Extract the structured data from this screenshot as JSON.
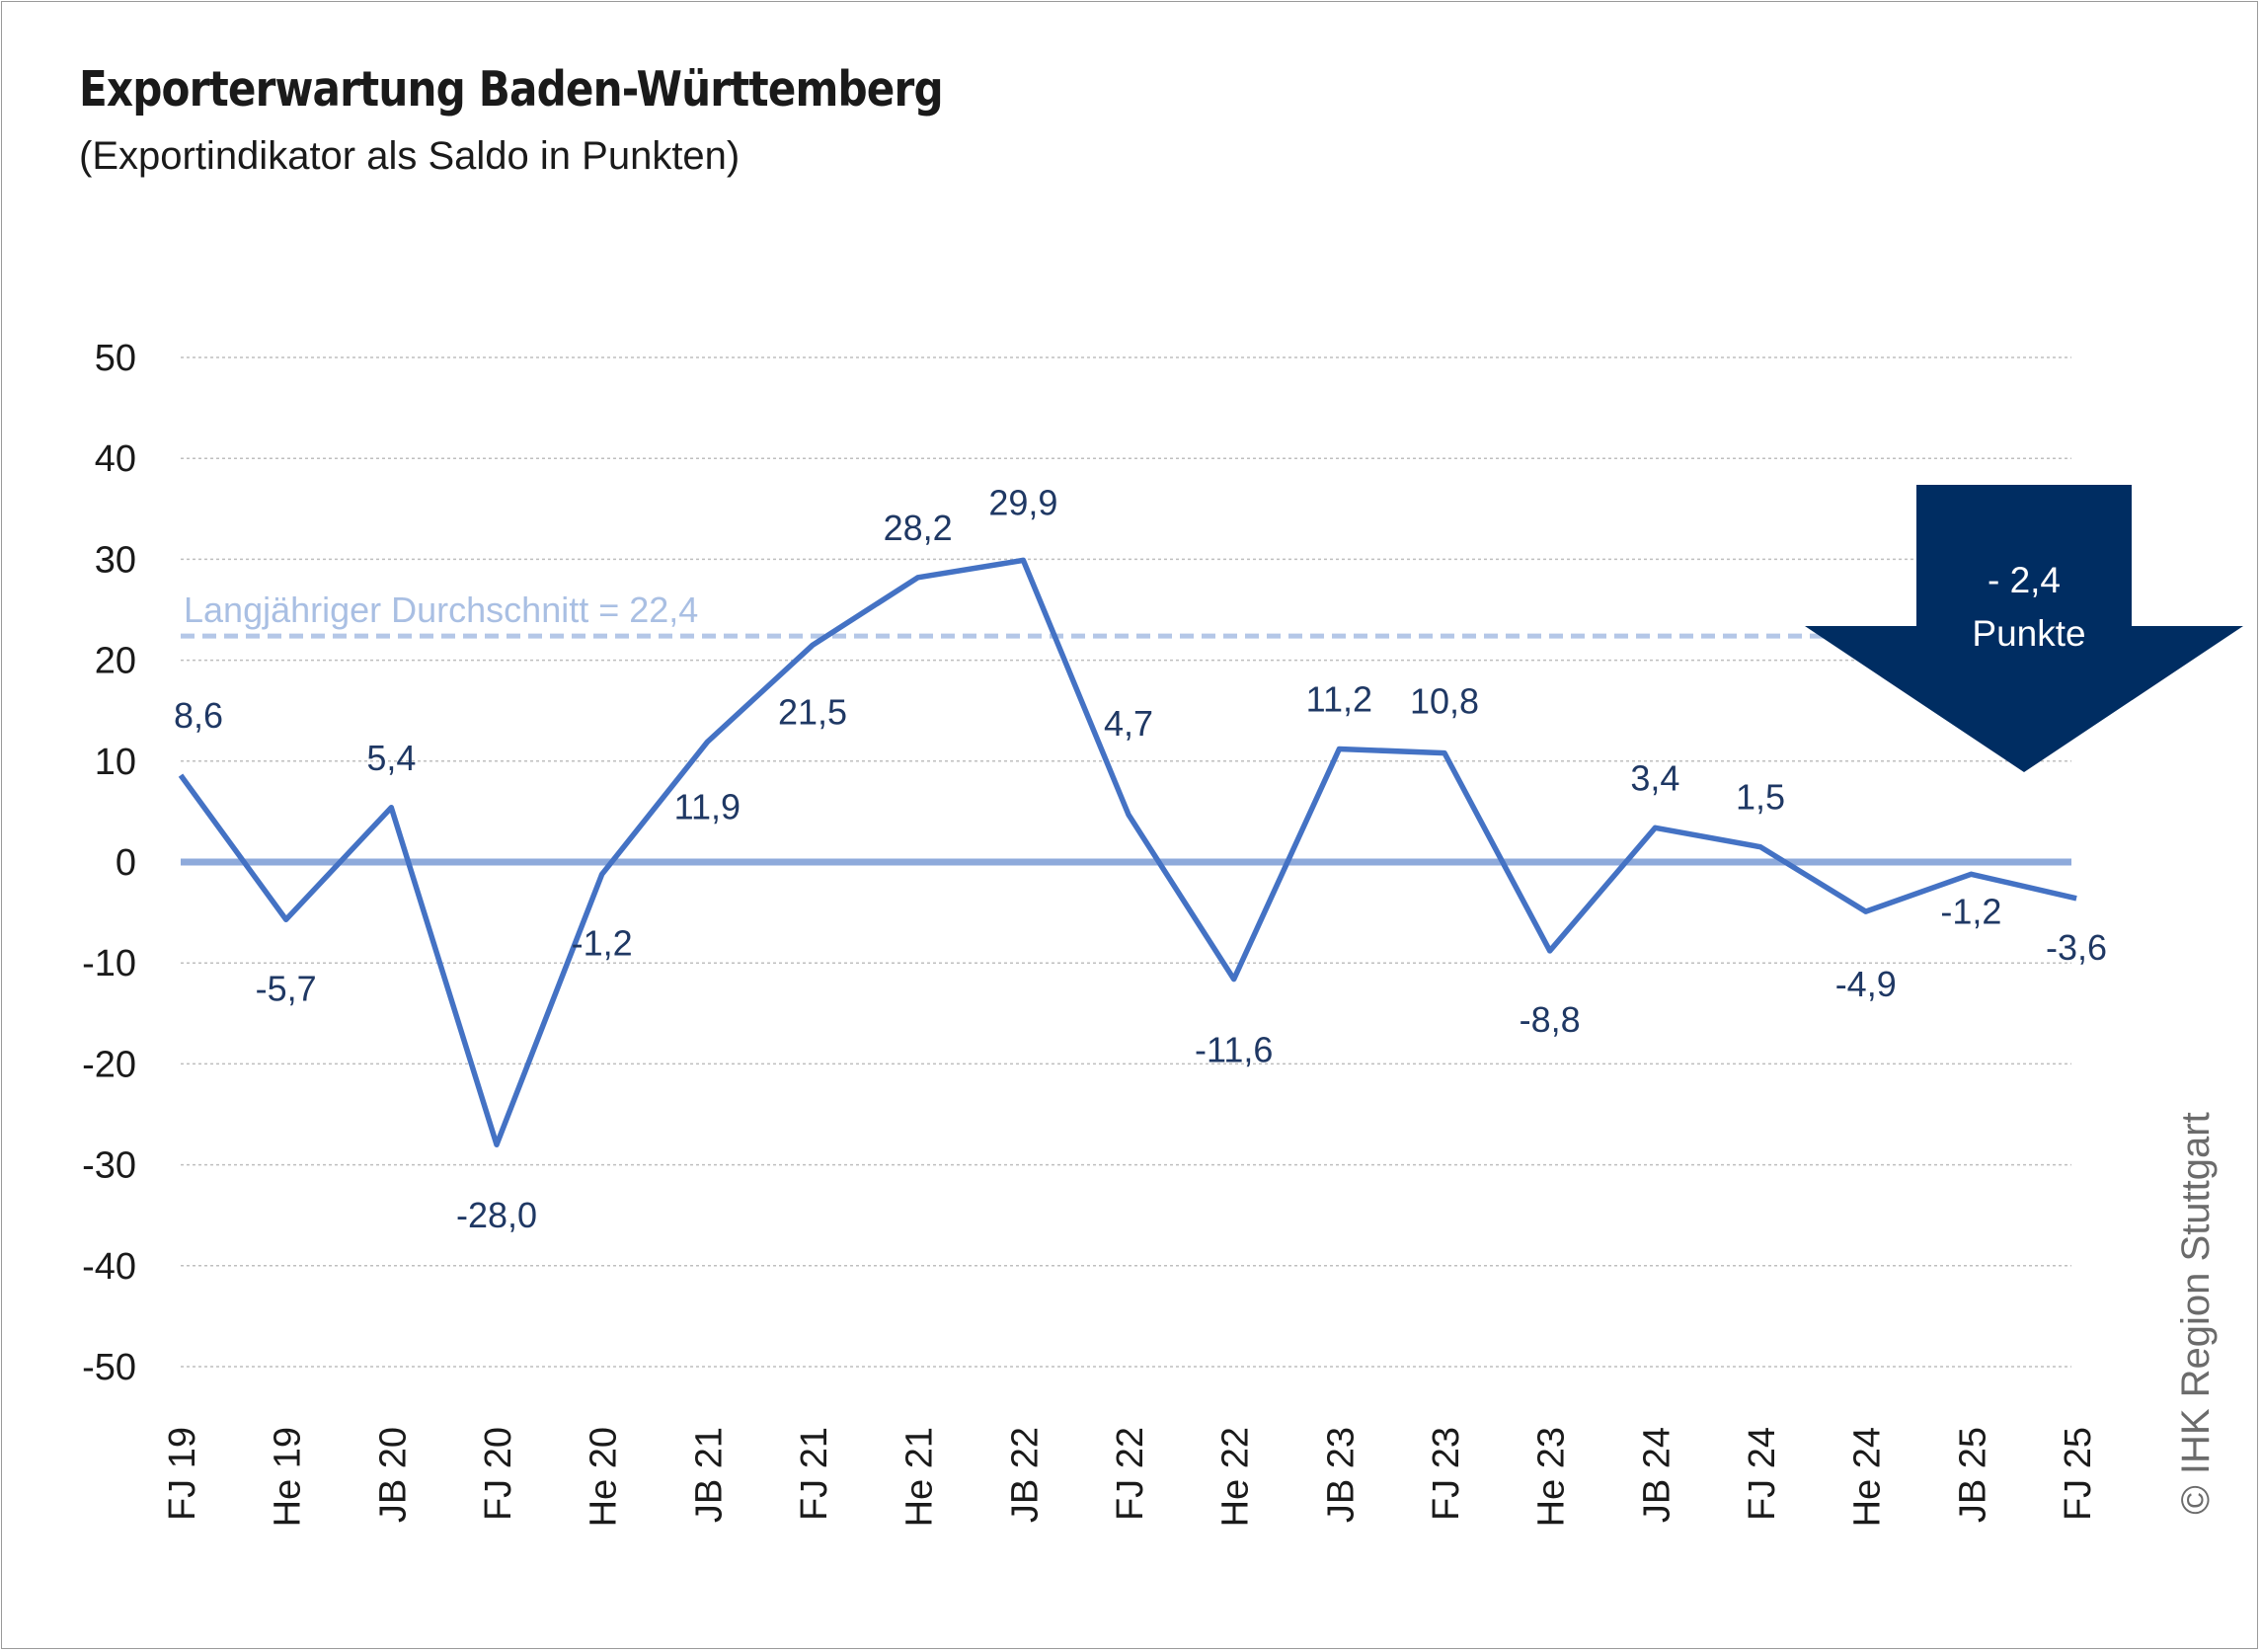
{
  "title": "Exporterwartung Baden-Württemberg",
  "subtitle": "(Exportindikator als Saldo in Punkten)",
  "copyright": "© IHK Region Stuttgart",
  "average_label": "Langjähriger Durchschnitt = 22,4",
  "callout": {
    "line1": "- 2,4",
    "line2": "Punkte"
  },
  "colors": {
    "series": "#4472c4",
    "zero_line": "#8eaadb",
    "average_line": "#b4c7e7",
    "average_text": "#a9bfe3",
    "labels": "#1f3864",
    "callout_fill": "#002d62",
    "grid": "#bfbfbf",
    "axis_text": "#1a1a1a"
  },
  "chart_data": {
    "type": "line",
    "categories": [
      "FJ 19",
      "He 19",
      "JB 20",
      "FJ 20",
      "He 20",
      "JB 21",
      "FJ 21",
      "He 21",
      "JB 22",
      "FJ 22",
      "He 22",
      "JB 23",
      "FJ 23",
      "He 23",
      "JB 24",
      "FJ 24",
      "He 24",
      "JB 25",
      "FJ 25"
    ],
    "values": [
      8.6,
      -5.7,
      5.4,
      -28.0,
      -1.2,
      11.9,
      21.5,
      28.2,
      29.9,
      4.7,
      -11.6,
      11.2,
      10.8,
      -8.8,
      3.4,
      1.5,
      -4.9,
      -1.2,
      -3.6
    ],
    "data_labels": [
      "8,6",
      "-5,7",
      "5,4",
      "-28,0",
      "-1,2",
      "11,9",
      "21,5",
      "28,2",
      "29,9",
      "4,7",
      "-11,6",
      "11,2",
      "10,8",
      "-8,8",
      "3,4",
      "1,5",
      "-4,9",
      "-1,2",
      "-3,6"
    ],
    "ylim": [
      -50,
      50
    ],
    "yticks": [
      50,
      40,
      30,
      20,
      10,
      0,
      -10,
      -20,
      -30,
      -40,
      -50
    ],
    "average": 22.4,
    "grid": true,
    "xlabel": "",
    "ylabel": ""
  }
}
